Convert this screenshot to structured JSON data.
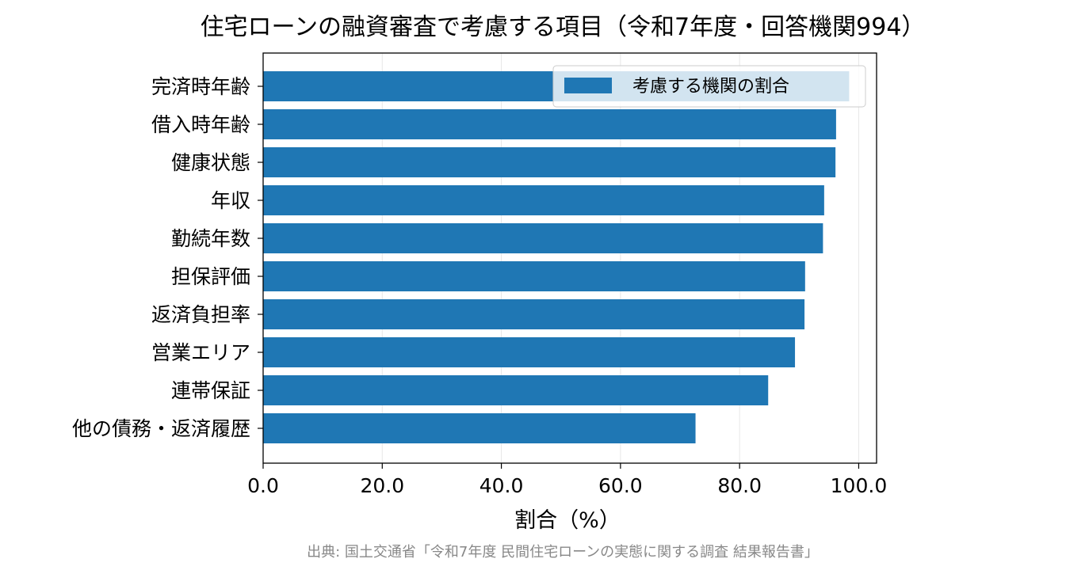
{
  "chart_data": {
    "type": "bar",
    "orientation": "horizontal",
    "title": "住宅ローンの融資審査で考慮する項目（令和7年度・回答機関994）",
    "xlabel": "割合（%）",
    "ylabel": "",
    "xlim": [
      0,
      103
    ],
    "xticks": [
      0,
      20,
      40,
      60,
      80,
      100
    ],
    "xtick_labels": [
      "0.0",
      "20.0",
      "40.0",
      "60.0",
      "80.0",
      "100.0"
    ],
    "grid": "x",
    "legend_position": "top-right",
    "categories": [
      "完済時年齢",
      "借入時年齢",
      "健康状態",
      "年収",
      "勤続年数",
      "担保評価",
      "返済負担率",
      "営業エリア",
      "連帯保証",
      "他の債務・返済履歴"
    ],
    "series": [
      {
        "name": "考慮する機関の割合",
        "color": "#1f77b4",
        "values": [
          98.4,
          96.2,
          96.1,
          94.2,
          94.0,
          91.0,
          90.9,
          89.3,
          84.8,
          72.6
        ]
      }
    ],
    "source": "出典: 国土交通省「令和7年度 民間住宅ローンの実態に関する調査 結果報告書」"
  }
}
